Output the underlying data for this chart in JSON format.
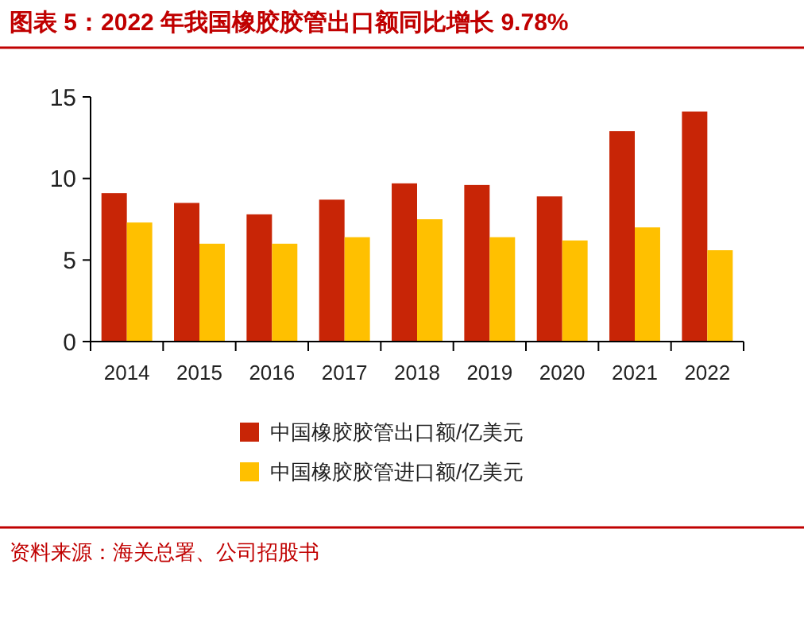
{
  "chart_data": {
    "type": "bar",
    "title": "图表 5：2022 年我国橡胶胶管出口额同比增长 9.78%",
    "categories": [
      "2014",
      "2015",
      "2016",
      "2017",
      "2018",
      "2019",
      "2020",
      "2021",
      "2022"
    ],
    "series": [
      {
        "name": "中国橡胶胶管出口额/亿美元",
        "color": "#c82506",
        "values": [
          9.1,
          8.5,
          7.8,
          8.7,
          9.7,
          9.6,
          8.9,
          12.9,
          14.1
        ]
      },
      {
        "name": "中国橡胶胶管进口额/亿美元",
        "color": "#ffc000",
        "values": [
          7.3,
          6.0,
          6.0,
          6.4,
          7.5,
          6.4,
          6.2,
          7.0,
          5.6
        ]
      }
    ],
    "ylim": [
      0,
      15
    ],
    "yticks": [
      0,
      5,
      10,
      15
    ],
    "grid": false,
    "legend": "bottom",
    "annotations": [
      "资料来源：海关总署、公司招股书"
    ]
  }
}
